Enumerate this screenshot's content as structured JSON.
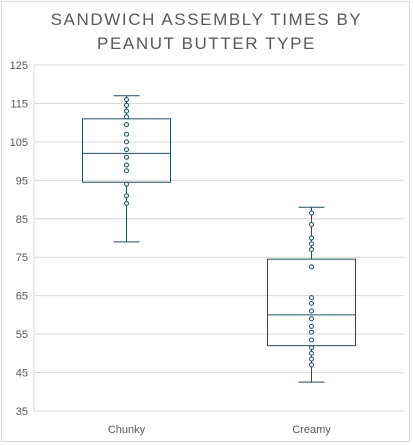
{
  "chart_data": {
    "type": "box",
    "title_lines": [
      "SANDWICH ASSEMBLY TIMES BY",
      "PEANUT BUTTER TYPE"
    ],
    "xlabel": "",
    "ylabel": "",
    "ylim": [
      35,
      125
    ],
    "yticks": [
      35,
      45,
      55,
      65,
      75,
      85,
      95,
      105,
      115,
      125
    ],
    "grid": true,
    "legend": "none",
    "colors": {
      "box": "#1f4e5f",
      "grid": "#d9d9d9",
      "text": "#595959"
    },
    "categories": [
      "Chunky",
      "Creamy"
    ],
    "boxes": [
      {
        "category": "Chunky",
        "min": 79,
        "q1": 94.5,
        "median": 102,
        "q3": 111,
        "max": 117,
        "points": [
          89,
          91,
          94,
          97.5,
          99,
          101,
          103,
          105,
          107,
          109.5,
          111.5,
          113,
          114.5,
          116
        ]
      },
      {
        "category": "Creamy",
        "min": 42.5,
        "q1": 52,
        "median": 60,
        "q3": 74.5,
        "max": 88,
        "points": [
          47,
          48.5,
          50,
          51.5,
          53.5,
          55.5,
          57,
          59,
          61,
          63,
          64.5,
          72.5,
          77,
          78.5,
          80,
          83.5,
          86.5
        ]
      }
    ]
  }
}
